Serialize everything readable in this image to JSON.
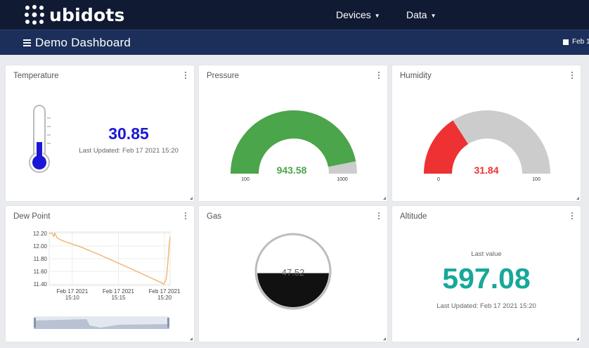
{
  "app": {
    "logo_text": "ubidots"
  },
  "nav": {
    "devices": "Devices",
    "data": "Data"
  },
  "dashboard": {
    "title": "Demo Dashboard",
    "date_label": "Feb 1"
  },
  "widgets": {
    "temperature": {
      "title": "Temperature",
      "value": "30.85",
      "updated": "Last Updated: Feb 17 2021 15:20",
      "fill_fraction": 0.35,
      "color": "#1a17d6"
    },
    "pressure": {
      "title": "Pressure",
      "value": "943.58",
      "value_num": 943.58,
      "min": "100",
      "max": "1000",
      "min_num": 100,
      "max_num": 1000,
      "color": "#4ba54a"
    },
    "humidity": {
      "title": "Humidity",
      "value": "31.84",
      "value_num": 31.84,
      "min": "0",
      "max": "100",
      "min_num": 0,
      "max_num": 100,
      "color": "#ee3133"
    },
    "dew_point": {
      "title": "Dew Point",
      "chart_data": {
        "type": "line",
        "y_ticks": [
          "12.20",
          "12.00",
          "11.80",
          "11.60",
          "11.40"
        ],
        "ylim": [
          11.38,
          12.22
        ],
        "x_ticks": [
          {
            "date": "Feb 17 2021",
            "time": "15:10"
          },
          {
            "date": "Feb 17 2021",
            "time": "15:15"
          },
          {
            "date": "Feb 17 2021",
            "time": "15:20"
          }
        ],
        "x_tick_minutes": [
          10,
          15,
          20
        ],
        "xlim_minutes": [
          7.5,
          20.6
        ],
        "series": [
          {
            "color": "#f0b46d",
            "points": [
              [
                7.5,
                12.2
              ],
              [
                7.8,
                12.2
              ],
              [
                8.0,
                12.15
              ],
              [
                8.1,
                12.2
              ],
              [
                8.4,
                12.12
              ],
              [
                9.0,
                12.08
              ],
              [
                11.0,
                11.98
              ],
              [
                13.0,
                11.86
              ],
              [
                15.0,
                11.73
              ],
              [
                17.0,
                11.6
              ],
              [
                18.5,
                11.5
              ],
              [
                19.7,
                11.42
              ],
              [
                19.9,
                11.4
              ],
              [
                20.1,
                11.45
              ],
              [
                20.2,
                11.5
              ],
              [
                20.35,
                11.72
              ],
              [
                20.5,
                12.02
              ],
              [
                20.6,
                12.14
              ]
            ]
          }
        ]
      }
    },
    "gas": {
      "title": "Gas",
      "value": "47.52",
      "fill_fraction": 0.4752,
      "color": "#111111"
    },
    "altitude": {
      "title": "Altitude",
      "caption": "Last value",
      "value": "597.08",
      "updated": "Last Updated: Feb 17 2021 15:20",
      "color": "#17a89a"
    }
  }
}
